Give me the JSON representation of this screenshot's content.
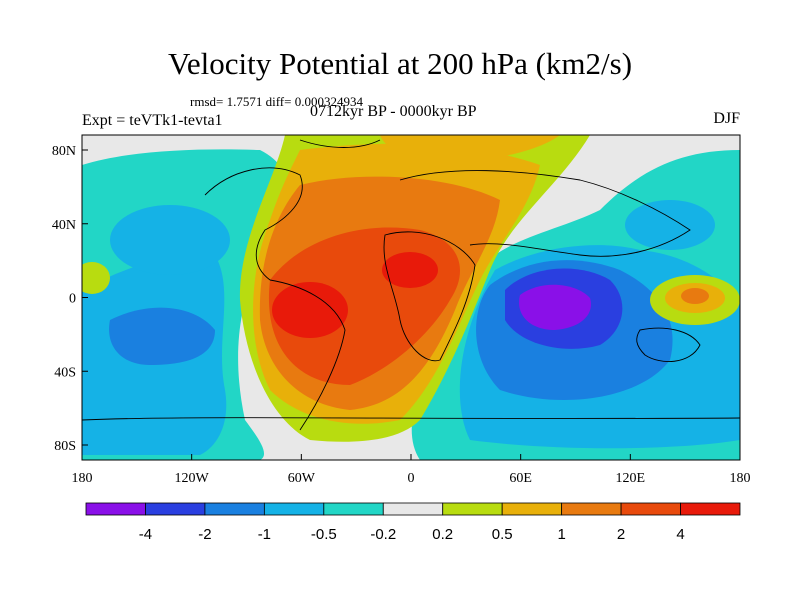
{
  "title": "Velocity Potential at 200 hPa (km2/s)",
  "stats": "rmsd= 1.7571 diff= 0.000324934",
  "experiment": "Expt = teVTk1-tevta1",
  "period": "0712kyr BP - 0000kyr BP",
  "season": "DJF",
  "map": {
    "lat_ticks": [
      "80N",
      "40N",
      "0",
      "40S",
      "80S"
    ],
    "lon_ticks": [
      "180",
      "120W",
      "60W",
      "0",
      "60E",
      "120E",
      "180"
    ]
  },
  "colorbar": {
    "labels": [
      "-4",
      "-2",
      "-1",
      "-0.5",
      "-0.2",
      "0.2",
      "0.5",
      "1",
      "2",
      "4"
    ],
    "colors": [
      "#8a10e8",
      "#2a3fe0",
      "#1a80e0",
      "#15b2e6",
      "#22d6c6",
      "#e8e8e8",
      "#b8dc10",
      "#e8b00a",
      "#e87a10",
      "#e84a0c",
      "#e81a0a"
    ]
  }
}
